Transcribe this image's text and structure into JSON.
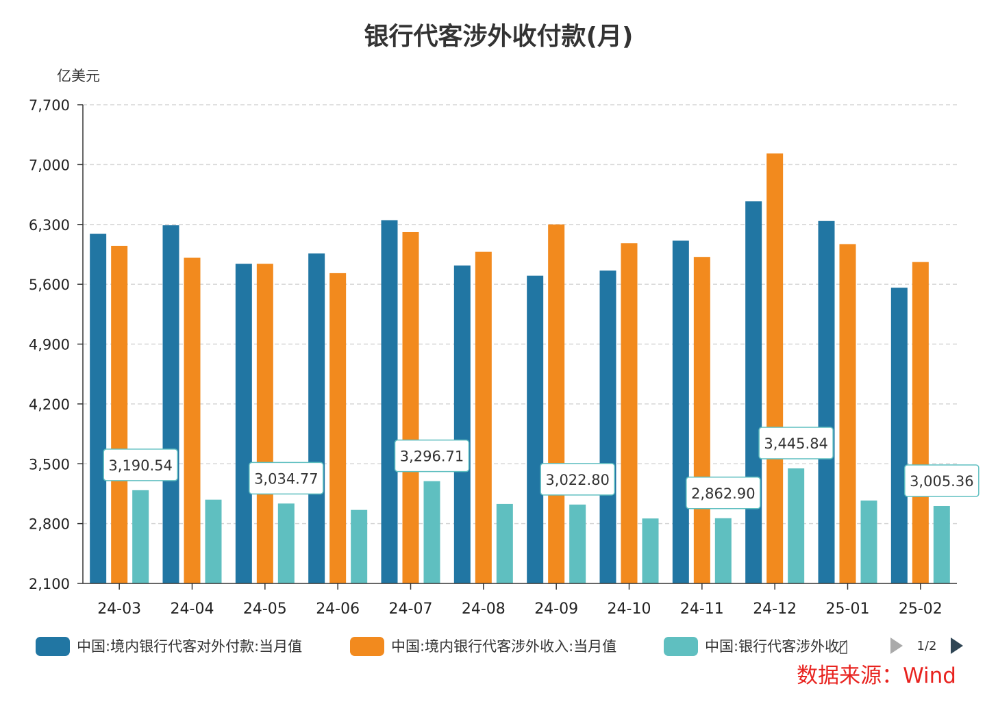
{
  "chart_data": {
    "type": "bar",
    "title": "银行代客涉外收付款(月)",
    "ylabel": "亿美元",
    "xlabel": "",
    "ylim": [
      2100,
      7700
    ],
    "yticks": [
      2100,
      2800,
      3500,
      4200,
      4900,
      5600,
      6300,
      7000,
      7700
    ],
    "ytick_labels": [
      "2,100",
      "2,800",
      "3,500",
      "4,200",
      "4,900",
      "5,600",
      "6,300",
      "7,000",
      "7,700"
    ],
    "grid": true,
    "categories": [
      "24-03",
      "24-04",
      "24-05",
      "24-06",
      "24-07",
      "24-08",
      "24-09",
      "24-10",
      "24-11",
      "24-12",
      "25-01",
      "25-02"
    ],
    "series": [
      {
        "name": "中国:境内银行代客对外付款:当月值",
        "legend_label": "中国:境内银行代客对外付款:当月值",
        "color": "#2176a3",
        "values": [
          6190,
          6290,
          5840,
          5960,
          6350,
          5820,
          5700,
          5760,
          6110,
          6570,
          6340,
          5560
        ]
      },
      {
        "name": "中国:境内银行代客涉外收入:当月值",
        "legend_label": "中国:境内银行代客涉外收入:当月值",
        "color": "#f28a1e",
        "values": [
          6050,
          5910,
          5840,
          5730,
          6210,
          5980,
          6300,
          6080,
          5920,
          7130,
          6070,
          5860
        ]
      },
      {
        "name": "中国:银行代客涉外收付款",
        "legend_label": "中国:银行代客涉外收付̸",
        "color": "#5fbfc0",
        "values": [
          3190.54,
          3080,
          3034.77,
          2960,
          3296.71,
          3030,
          3022.8,
          2860,
          2862.9,
          3445.84,
          3070,
          3005.36
        ]
      }
    ],
    "data_labels": [
      {
        "index": 0,
        "text": "3,190.54"
      },
      {
        "index": 2,
        "text": "3,034.77"
      },
      {
        "index": 4,
        "text": "3,296.71"
      },
      {
        "index": 6,
        "text": "3,022.80"
      },
      {
        "index": 8,
        "text": "2,862.90"
      },
      {
        "index": 9,
        "text": "3,445.84"
      },
      {
        "index": 11,
        "text": "3,005.36"
      }
    ],
    "legend_position": "bottom",
    "legend_page": "1/2",
    "source": "数据来源：Wind"
  }
}
